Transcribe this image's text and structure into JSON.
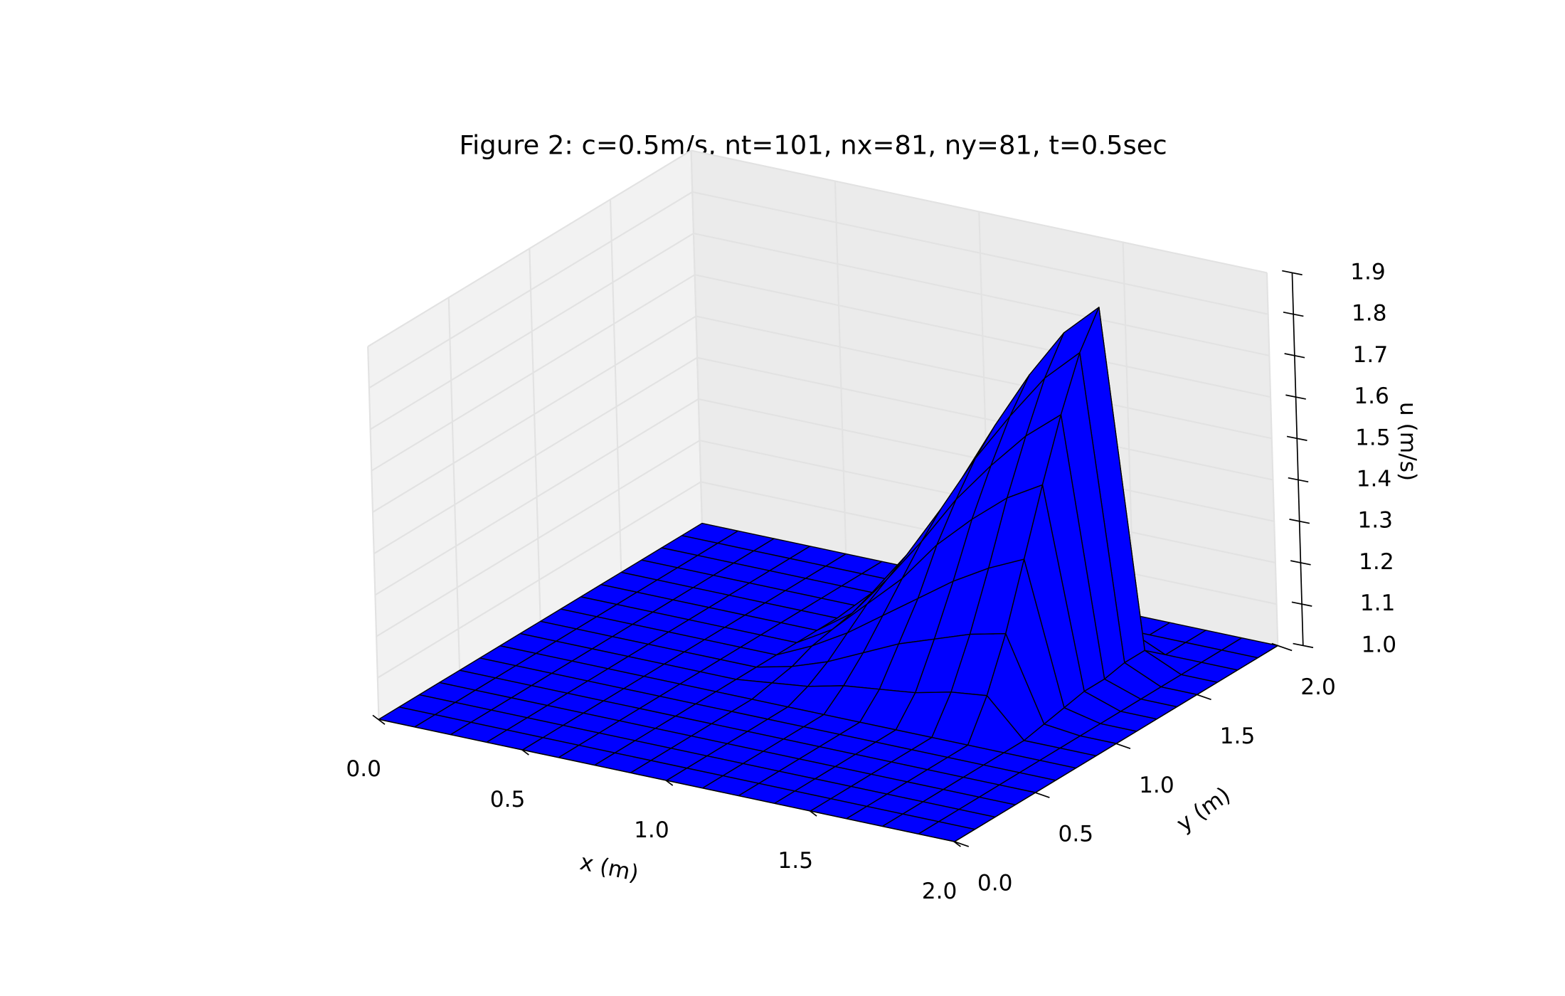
{
  "chart_data": {
    "type": "surface",
    "title": "Figure 2: c=0.5m/s, nt=101, nx=81, ny=81, t=0.5sec",
    "xlabel": "x (m)",
    "ylabel": "y (m)",
    "zlabel": "u (m/s)",
    "color": "#0000ff",
    "edgecolor": "#000000",
    "grid": true,
    "xlim": [
      0,
      2
    ],
    "ylim": [
      0,
      2
    ],
    "zlim": [
      1,
      1.9
    ],
    "xticks": [
      {
        "value": 0,
        "label": "0.0"
      },
      0.5,
      {
        "value": 1,
        "label": "1.0"
      },
      1.5,
      {
        "value": 2,
        "label": "2.0"
      }
    ],
    "yticks": [
      {
        "value": 0,
        "label": "0.0"
      },
      0.5,
      {
        "value": 1,
        "label": "1.0"
      },
      1.5,
      {
        "value": 2,
        "label": "2.0"
      }
    ],
    "zticks": [
      {
        "value": 1,
        "label": "1.0"
      },
      1.1,
      1.2,
      1.3,
      1.4,
      1.5,
      1.6,
      1.7,
      1.8,
      1.9
    ],
    "x": [
      0,
      0.125,
      0.25,
      0.375,
      0.5,
      0.625,
      0.75,
      0.875,
      1,
      1.125,
      1.25,
      1.375,
      1.5,
      1.625,
      1.75,
      1.875,
      2
    ],
    "y": [
      0,
      0.125,
      0.25,
      0.375,
      0.5,
      0.625,
      0.75,
      0.875,
      1,
      1.125,
      1.25,
      1.375,
      1.5,
      1.625,
      1.75,
      1.875,
      2
    ],
    "z": [
      [
        1,
        1,
        1,
        1,
        1,
        1,
        1,
        1,
        1,
        1,
        1,
        1,
        1,
        1,
        1,
        1,
        1
      ],
      [
        1,
        1,
        1,
        1,
        1,
        1,
        1,
        1,
        1,
        1,
        1,
        1,
        1,
        1,
        1,
        1,
        1
      ],
      [
        1,
        1,
        1,
        1,
        1,
        1,
        1,
        1,
        1,
        1,
        1,
        1,
        1,
        1,
        1,
        1,
        1
      ],
      [
        1,
        1,
        1,
        1,
        1,
        1,
        1,
        1,
        1,
        1,
        1,
        1,
        1,
        1,
        1,
        1,
        1
      ],
      [
        1,
        1,
        1,
        1,
        1,
        1,
        1,
        1,
        1,
        1,
        1,
        1,
        1,
        1,
        1,
        1,
        1
      ],
      [
        1,
        1,
        1,
        1,
        1,
        1,
        1,
        1,
        1,
        1,
        1,
        1,
        1,
        1,
        1,
        1,
        1
      ],
      [
        1,
        1,
        1,
        1,
        1,
        1,
        1,
        1,
        1,
        1,
        1,
        1,
        1,
        1,
        1,
        1,
        1
      ],
      [
        1,
        1,
        1,
        1,
        1,
        1,
        1,
        1.01,
        1.02,
        1.04,
        1.05,
        1.06,
        1.08,
        1.09,
        1,
        1,
        1
      ],
      [
        1,
        1,
        1,
        1,
        1,
        1,
        1,
        1.02,
        1.05,
        1.09,
        1.13,
        1.16,
        1.19,
        1.21,
        1.01,
        1,
        1
      ],
      [
        1,
        1,
        1,
        1,
        1,
        1,
        1,
        1.04,
        1.09,
        1.15,
        1.21,
        1.27,
        1.32,
        1.36,
        1.02,
        1,
        1
      ],
      [
        1,
        1,
        1,
        1,
        1,
        1,
        1,
        1.05,
        1.13,
        1.21,
        1.31,
        1.39,
        1.46,
        1.51,
        1.03,
        1,
        1
      ],
      [
        1,
        1,
        1,
        1,
        1,
        1,
        1,
        1.06,
        1.16,
        1.27,
        1.39,
        1.49,
        1.58,
        1.65,
        1.03,
        1,
        1
      ],
      [
        1,
        1,
        1,
        1,
        1,
        1,
        1,
        1.08,
        1.19,
        1.32,
        1.46,
        1.58,
        1.69,
        1.77,
        1.04,
        1,
        1
      ],
      [
        1,
        1,
        1,
        1,
        1,
        1,
        1,
        1.09,
        1.21,
        1.36,
        1.51,
        1.65,
        1.77,
        1.85,
        1.04,
        1,
        1
      ],
      [
        1,
        1,
        1,
        1,
        1,
        1,
        1,
        1,
        1.01,
        1.02,
        1.03,
        1.03,
        1.04,
        1.04,
        1,
        1,
        1
      ],
      [
        1,
        1,
        1,
        1,
        1,
        1,
        1,
        1,
        1,
        1,
        1,
        1,
        1,
        1,
        1,
        1,
        1
      ],
      [
        1,
        1,
        1,
        1,
        1,
        1,
        1,
        1,
        1,
        1,
        1,
        1,
        1,
        1,
        1,
        1,
        1
      ]
    ]
  }
}
